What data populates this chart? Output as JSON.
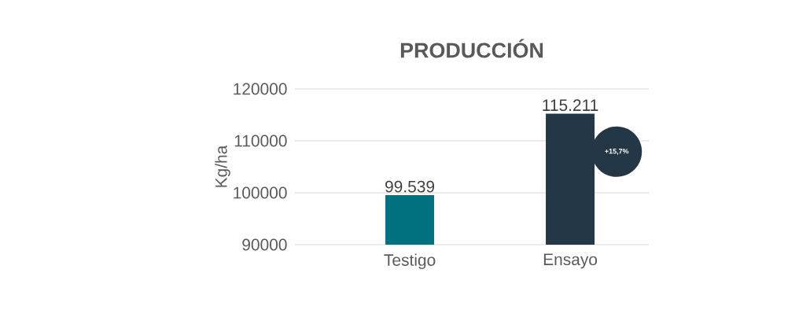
{
  "chart_data": {
    "type": "bar",
    "title": "PRODUCCIÓN",
    "ylabel": "Kg/ha",
    "categories": [
      "Testigo",
      "Ensayo"
    ],
    "values": [
      99539,
      115211
    ],
    "colors": [
      "#00717f",
      "#243746"
    ],
    "value_labels": [
      "99.539",
      "115.211"
    ],
    "ylim": [
      90000,
      120000
    ],
    "yticks": [
      90000,
      100000,
      110000,
      120000
    ],
    "grid": "y",
    "annotations": [
      "+15,7%"
    ]
  }
}
